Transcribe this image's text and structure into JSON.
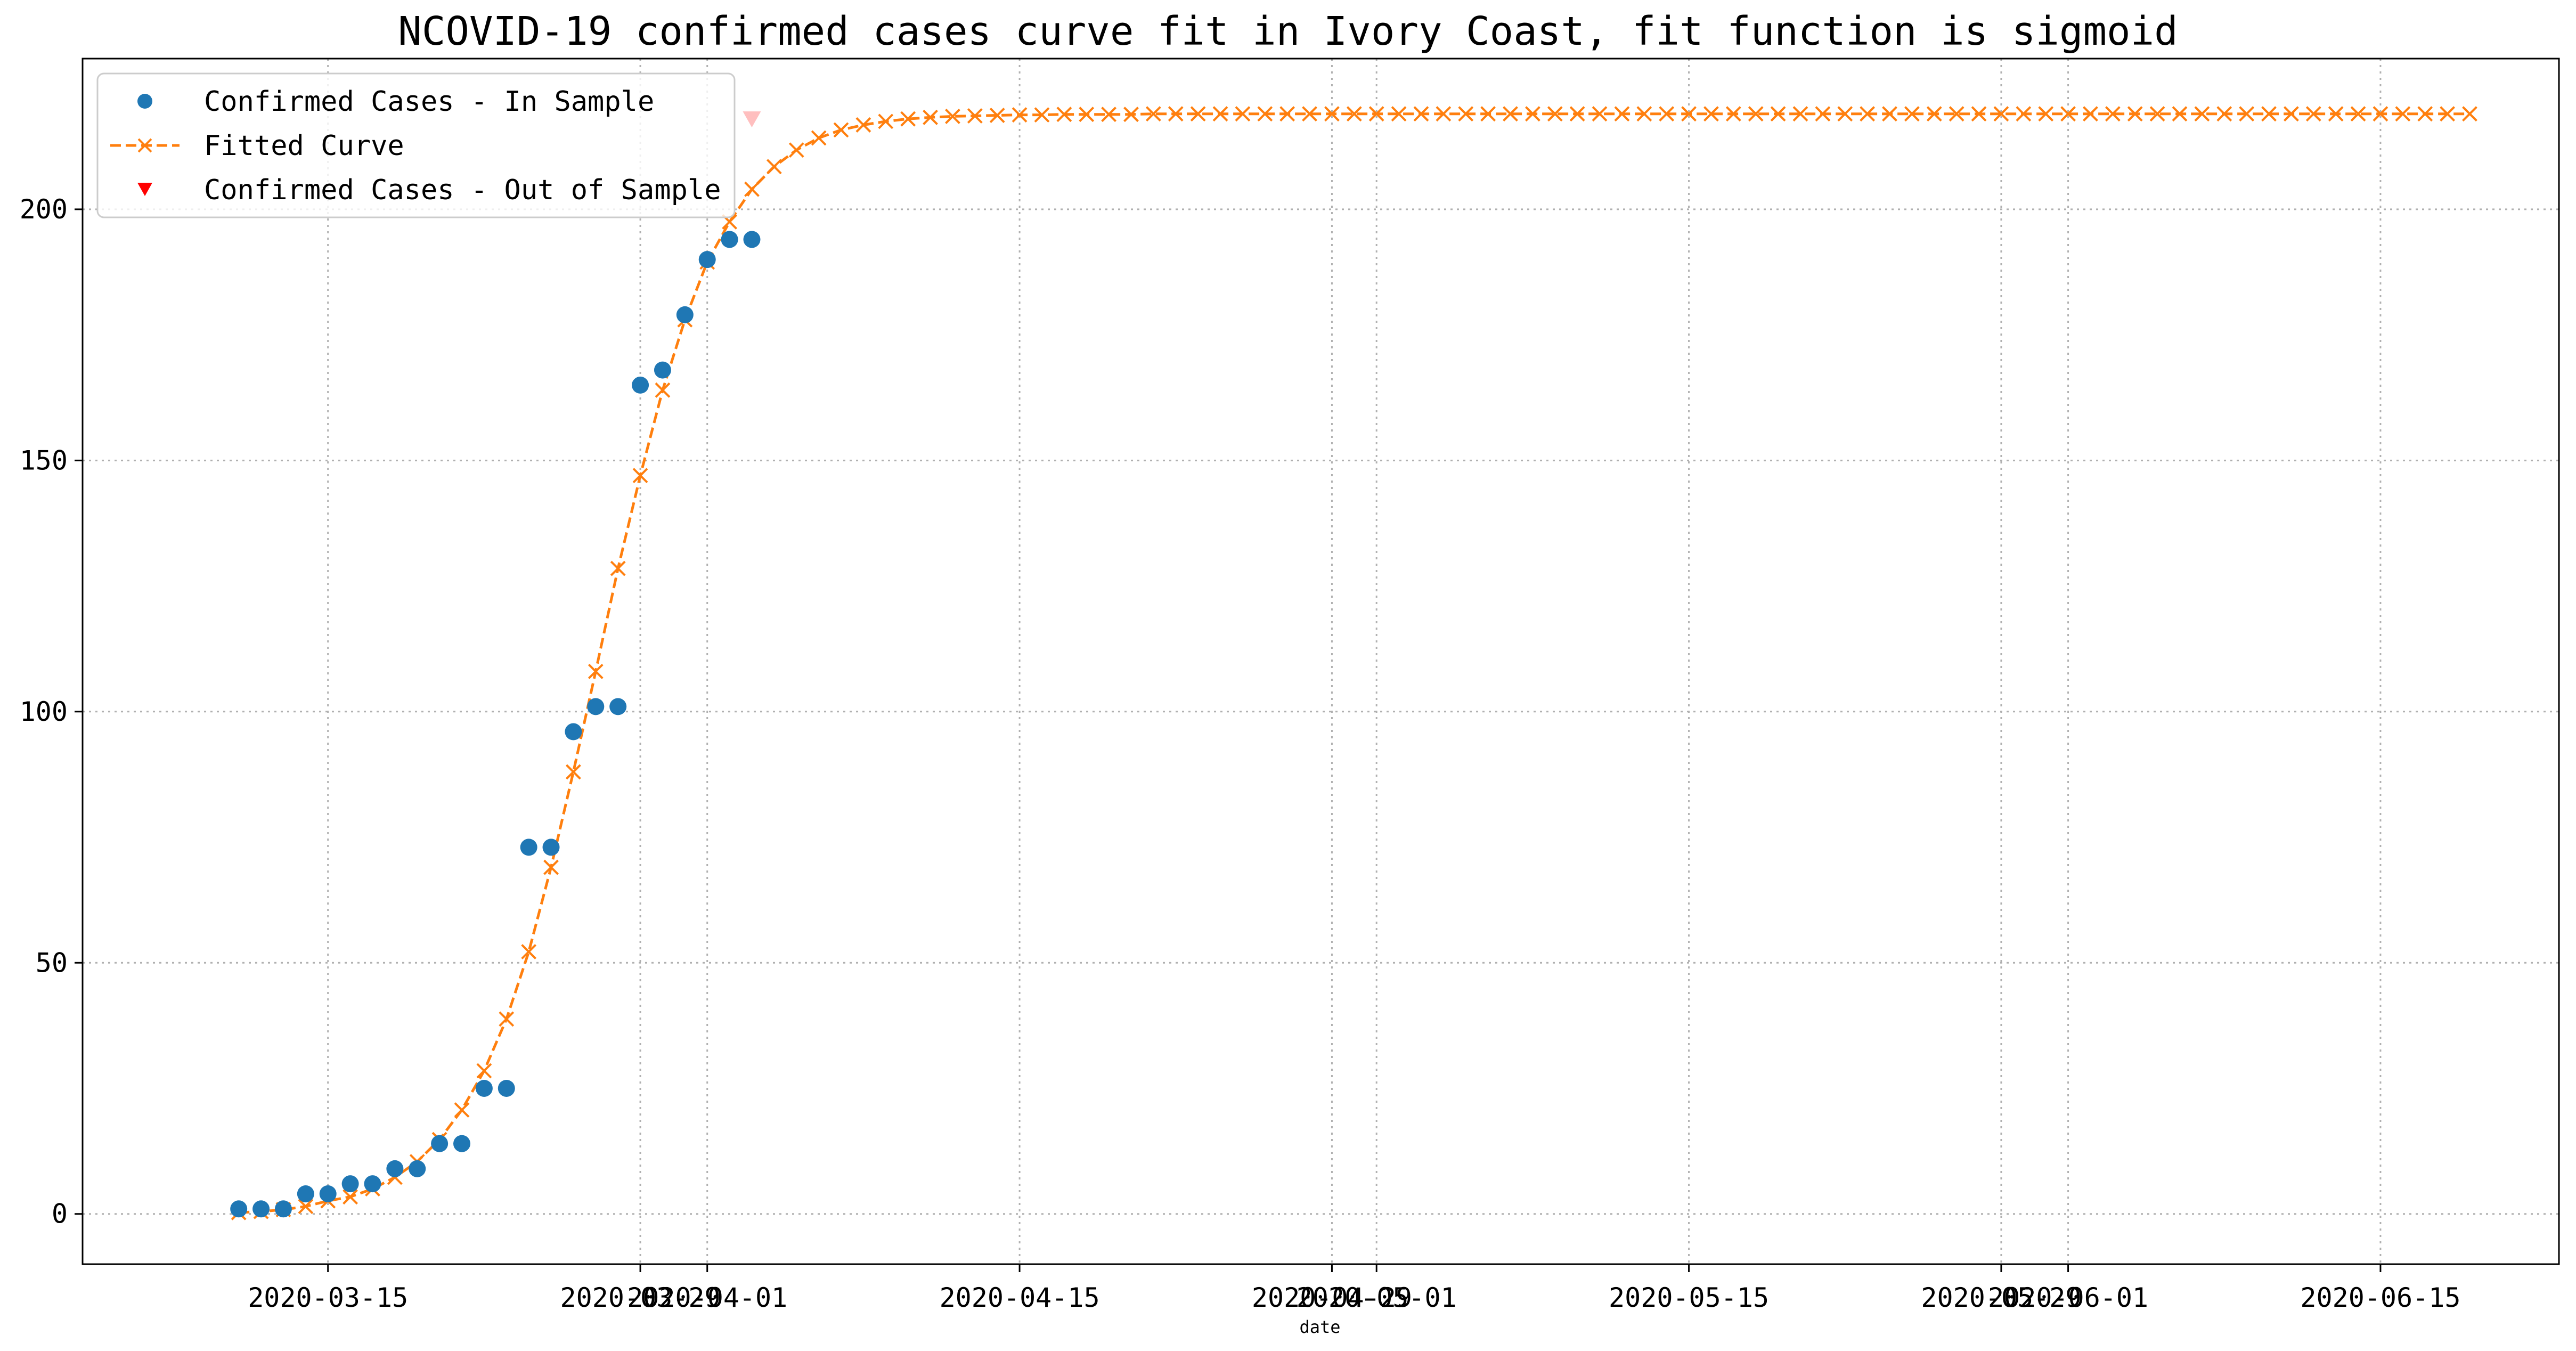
{
  "chart_data": {
    "type": "line",
    "title": "NCOVID-19 confirmed cases curve fit in Ivory Coast, fit function is sigmoid",
    "xlabel": "date",
    "ylabel": "",
    "x_ticks": [
      "2020-03-15",
      "2020-03-29",
      "2020-04-01",
      "2020-04-15",
      "2020-04-29",
      "2020-05-01",
      "2020-05-15",
      "2020-05-29",
      "2020-06-01",
      "2020-06-15"
    ],
    "y_ticks": [
      0,
      50,
      100,
      150,
      200
    ],
    "ylim": [
      -10,
      230
    ],
    "xlim": [
      "2020-03-04",
      "2020-06-23"
    ],
    "grid": true,
    "legend_position": "top-left",
    "colors": {
      "in_sample": "#1f77b4",
      "fitted": "#ff7f0e",
      "out_of_sample": "#ff0000"
    },
    "series": [
      {
        "name": "Confirmed Cases - In Sample",
        "kind": "scatter",
        "marker": "circle",
        "x": [
          "2020-03-11",
          "2020-03-12",
          "2020-03-13",
          "2020-03-14",
          "2020-03-15",
          "2020-03-16",
          "2020-03-17",
          "2020-03-18",
          "2020-03-19",
          "2020-03-20",
          "2020-03-21",
          "2020-03-22",
          "2020-03-23",
          "2020-03-24",
          "2020-03-25",
          "2020-03-26",
          "2020-03-27",
          "2020-03-28",
          "2020-03-29",
          "2020-03-30",
          "2020-03-31",
          "2020-04-01",
          "2020-04-02",
          "2020-04-03"
        ],
        "values": [
          1,
          1,
          1,
          4,
          4,
          6,
          6,
          9,
          9,
          14,
          14,
          25,
          25,
          73,
          73,
          96,
          101,
          101,
          165,
          168,
          179,
          190,
          194,
          194
        ]
      },
      {
        "name": "Fitted Curve",
        "kind": "line",
        "marker": "x",
        "x_start": "2020-03-11",
        "x_step_days": 1,
        "values": [
          0.26,
          0.48,
          0.85,
          1.5,
          2.6,
          3.4,
          5.0,
          7.3,
          10.4,
          14.8,
          20.7,
          28.5,
          38.8,
          52.2,
          69.0,
          88.0,
          108.0,
          128.5,
          147.0,
          164.0,
          178.0,
          189.5,
          197.5,
          204.0,
          208.5,
          211.8,
          214.2,
          215.8,
          216.8,
          217.5,
          218.0,
          218.3,
          218.5,
          218.6,
          218.7,
          218.8,
          218.8,
          218.9,
          218.9,
          218.9,
          218.9,
          219,
          219,
          219,
          219,
          219,
          219,
          219,
          219,
          219,
          219,
          219,
          219,
          219,
          219,
          219,
          219,
          219,
          219,
          219,
          219,
          219,
          219,
          219,
          219,
          219,
          219,
          219,
          219,
          219,
          219,
          219,
          219,
          219,
          219,
          219,
          219,
          219,
          219,
          219,
          219,
          219,
          219,
          219,
          219,
          219,
          219,
          219,
          219,
          219,
          219,
          219,
          219,
          219,
          219,
          219,
          219,
          219,
          219,
          219,
          219
        ]
      },
      {
        "name": "Confirmed Cases - Out of Sample",
        "kind": "scatter",
        "marker": "triangle-down",
        "x": [
          "2020-04-03"
        ],
        "values": [
          218
        ]
      }
    ]
  }
}
